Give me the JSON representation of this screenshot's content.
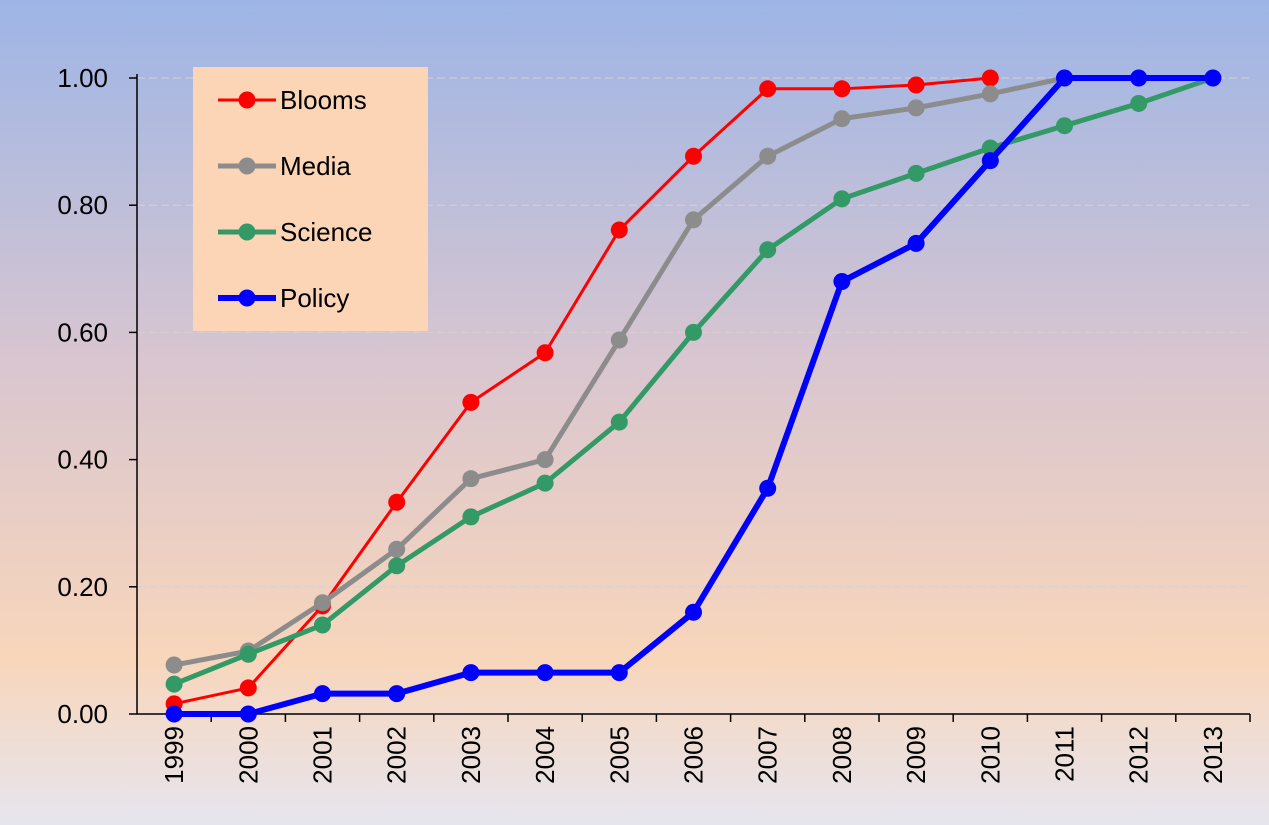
{
  "chart_data": {
    "type": "line",
    "categories": [
      "1999",
      "2000",
      "2001",
      "2002",
      "2003",
      "2004",
      "2005",
      "2006",
      "2007",
      "2008",
      "2009",
      "2010",
      "2011",
      "2012",
      "2013"
    ],
    "series": [
      {
        "name": "Blooms",
        "color": "#ff0000",
        "width": 3,
        "values": [
          0.016,
          0.041,
          0.17,
          0.333,
          0.49,
          0.568,
          0.761,
          0.877,
          0.983,
          0.983,
          0.989,
          1.0,
          null,
          null,
          null
        ]
      },
      {
        "name": "Media",
        "color": "#8c8c8c",
        "width": 5,
        "values": [
          0.077,
          0.099,
          0.175,
          0.259,
          0.37,
          0.4,
          0.588,
          0.777,
          0.877,
          0.936,
          0.953,
          0.975,
          1.0,
          1.0,
          1.0
        ]
      },
      {
        "name": "Science",
        "color": "#339966",
        "width": 5,
        "values": [
          0.047,
          0.094,
          0.14,
          0.233,
          0.31,
          0.363,
          0.459,
          0.6,
          0.73,
          0.81,
          0.85,
          0.89,
          0.925,
          0.96,
          1.0
        ]
      },
      {
        "name": "Policy",
        "color": "#0000ff",
        "width": 6,
        "values": [
          0.0,
          0.0,
          0.032,
          0.032,
          0.065,
          0.065,
          0.065,
          0.16,
          0.355,
          0.68,
          0.74,
          0.87,
          1.0,
          1.0,
          1.0
        ]
      }
    ],
    "ylim": [
      0,
      1
    ],
    "yticks": [
      {
        "value": 0,
        "label": "0.00"
      },
      {
        "value": 0.2,
        "label": "0.20"
      },
      {
        "value": 0.4,
        "label": "0.40"
      },
      {
        "value": 0.6,
        "label": "0.60"
      },
      {
        "value": 0.8,
        "label": "0.80"
      },
      {
        "value": 1,
        "label": "1.00"
      }
    ],
    "grid": true,
    "legend": "upper-left"
  }
}
